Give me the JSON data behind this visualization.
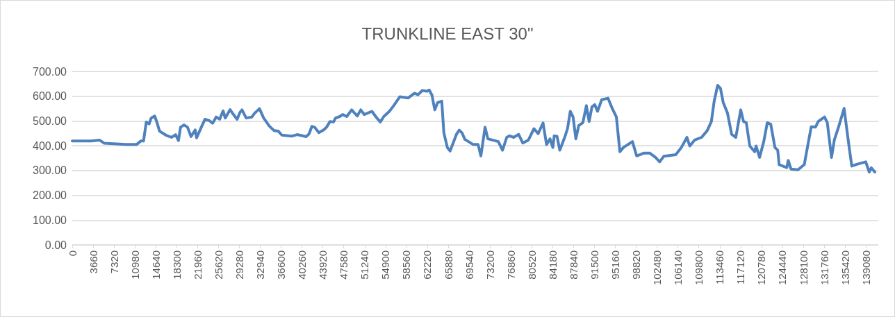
{
  "chart_data": {
    "type": "line",
    "title": "TRUNKLINE EAST 30\"",
    "x": [
      0,
      3305,
      4774,
      5630,
      9425,
      11261,
      11995,
      12485,
      12974,
      13464,
      13831,
      14443,
      14810,
      15300,
      16402,
      17381,
      18115,
      18605,
      18972,
      19584,
      20196,
      20808,
      21542,
      21787,
      22522,
      23256,
      23990,
      24602,
      25214,
      25826,
      26438,
      26806,
      27662,
      28152,
      28886,
      29376,
      29743,
      30478,
      31457,
      31946,
      32803,
      33538,
      34517,
      35374,
      36108,
      36720,
      38434,
      39413,
      41004,
      41494,
      41983,
      42473,
      43207,
      44064,
      44554,
      45166,
      45778,
      46145,
      46879,
      47369,
      48103,
      48960,
      49939,
      50551,
      51163,
      52510,
      53244,
      53978,
      54590,
      55570,
      56304,
      57406,
      58874,
      59976,
      60588,
      61322,
      62179,
      62546,
      63036,
      63526,
      64015,
      64750,
      65117,
      65729,
      66218,
      67320,
      67810,
      68299,
      68789,
      70258,
      71114,
      71604,
      72338,
      72828,
      74664,
      75398,
      76133,
      76622,
      77357,
      78214,
      78948,
      79927,
      80906,
      81641,
      82498,
      83110,
      83722,
      84211,
      84456,
      84946,
      85435,
      86292,
      86782,
      87271,
      87761,
      88250,
      88740,
      89474,
      90086,
      90576,
      91066,
      91555,
      92045,
      92779,
      93881,
      94615,
      95350,
      95962,
      96574,
      98165,
      98899,
      100123,
      101225,
      102204,
      102938,
      103673,
      105754,
      106733,
      107712,
      108202,
      109058,
      110282,
      111262,
      111996,
      112486,
      113098,
      113587,
      114077,
      114811,
      115546,
      116280,
      117137,
      117626,
      118116,
      118728,
      119585,
      119830,
      120442,
      121176,
      121788,
      122400,
      123134,
      123624,
      123869,
      125215,
      125460,
      125950,
      127174,
      128275,
      129010,
      129499,
      130234,
      130723,
      131825,
      132314,
      133049,
      133538,
      134273,
      135252,
      136109,
      136598,
      137578,
      139046,
      139658,
      140026,
      140638
    ],
    "series": [
      {
        "color": "#4f81bd",
        "values": [
          419,
          419,
          423,
          410,
          405,
          405,
          419,
          419,
          496,
          488,
          512,
          520,
          496,
          459,
          443,
          434,
          445,
          421,
          475,
          484,
          475,
          437,
          464,
          432,
          470,
          507,
          502,
          491,
          516,
          507,
          541,
          512,
          546,
          529,
          507,
          534,
          545,
          512,
          516,
          531,
          550,
          512,
          480,
          461,
          459,
          443,
          439,
          445,
          437,
          448,
          478,
          475,
          453,
          464,
          475,
          498,
          496,
          512,
          518,
          526,
          518,
          545,
          520,
          545,
          526,
          539,
          516,
          496,
          518,
          539,
          561,
          598,
          593,
          612,
          606,
          623,
          620,
          625,
          604,
          545,
          574,
          580,
          452,
          393,
          379,
          446,
          463,
          452,
          426,
          405,
          405,
          359,
          475,
          428,
          417,
          382,
          434,
          440,
          434,
          446,
          411,
          423,
          469,
          449,
          492,
          405,
          428,
          393,
          440,
          438,
          382,
          434,
          469,
          539,
          516,
          428,
          481,
          493,
          562,
          498,
          557,
          566,
          539,
          586,
          592,
          551,
          516,
          376,
          393,
          417,
          359,
          370,
          370,
          353,
          335,
          358,
          364,
          393,
          434,
          399,
          423,
          434,
          461,
          498,
          580,
          644,
          632,
          574,
          533,
          446,
          434,
          545,
          498,
          493,
          399,
          376,
          399,
          353,
          417,
          493,
          487,
          393,
          382,
          324,
          312,
          341,
          306,
          303,
          324,
          417,
          477,
          475,
          498,
          516,
          493,
          353,
          423,
          475,
          551,
          399,
          318,
          326,
          335,
          294,
          311,
          294
        ]
      }
    ],
    "xlim": [
      0,
      141250
    ],
    "xticks": [
      0,
      3660,
      7320,
      10980,
      14640,
      18300,
      21960,
      25620,
      29280,
      32940,
      36600,
      40260,
      43920,
      47580,
      51240,
      54900,
      58560,
      62220,
      65880,
      69540,
      73200,
      76860,
      80520,
      84180,
      87840,
      91500,
      95160,
      98820,
      102480,
      106140,
      109800,
      113460,
      117120,
      120780,
      124440,
      128100,
      131760,
      135420,
      139080
    ],
    "ylim": [
      0,
      700
    ],
    "yticks": [
      {
        "value": 0,
        "label": "0.00"
      },
      {
        "value": 100,
        "label": "100.00"
      },
      {
        "value": 200,
        "label": "200.00"
      },
      {
        "value": 300,
        "label": "300.00"
      },
      {
        "value": 400,
        "label": "400.00"
      },
      {
        "value": 500,
        "label": "500.00"
      },
      {
        "value": 600,
        "label": "600.00"
      },
      {
        "value": 700,
        "label": "700.00"
      }
    ],
    "grid": "y",
    "marker": "none",
    "line_style": "solid"
  }
}
